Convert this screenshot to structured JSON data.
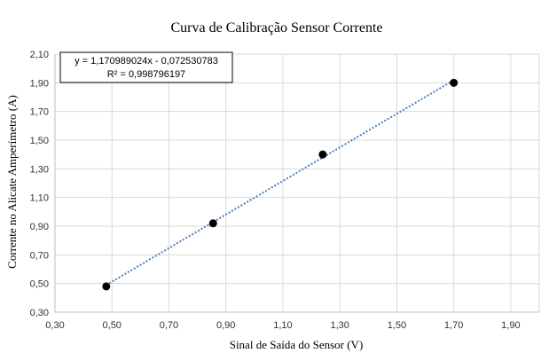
{
  "chart_data": {
    "type": "scatter",
    "title": "Curva de Calibração Sensor Corrente",
    "xlabel": "Sinal de Saída do Sensor (V)",
    "ylabel": "Corrente no Alicate Amperímetro (A)",
    "xlim": [
      0.3,
      2.0
    ],
    "ylim": [
      0.3,
      2.1
    ],
    "x_ticks": [
      "0,30",
      "0,50",
      "0,70",
      "0,90",
      "1,10",
      "1,30",
      "1,50",
      "1,70",
      "1,90"
    ],
    "x_tick_values": [
      0.3,
      0.5,
      0.7,
      0.9,
      1.1,
      1.3,
      1.5,
      1.7,
      1.9
    ],
    "y_ticks": [
      "0,30",
      "0,50",
      "0,70",
      "0,90",
      "1,10",
      "1,30",
      "1,50",
      "1,70",
      "1,90",
      "2,10"
    ],
    "y_tick_values": [
      0.3,
      0.5,
      0.7,
      0.9,
      1.1,
      1.3,
      1.5,
      1.7,
      1.9,
      2.1
    ],
    "grid": true,
    "series": [
      {
        "x": [
          0.48,
          0.855,
          1.24,
          1.7
        ],
        "y": [
          0.48,
          0.92,
          1.4,
          1.9
        ],
        "color": "#000000"
      }
    ],
    "trendline": {
      "type": "linear",
      "slope": 1.170989024,
      "intercept": -0.072530783,
      "x_range": [
        0.48,
        1.7
      ],
      "color": "#4a7ebb",
      "equation_label": "y = 1,170989024x - 0,072530783",
      "r2_label": "R² = 0,998796197"
    }
  }
}
